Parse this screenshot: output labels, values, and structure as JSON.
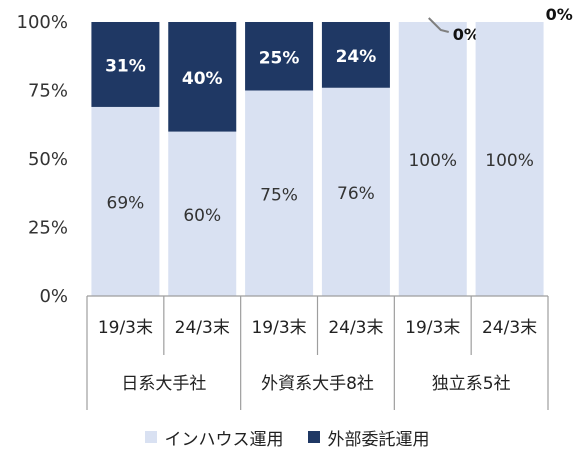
{
  "chart_data": {
    "type": "bar",
    "stacked": true,
    "categories": [
      "19/3末",
      "24/3末",
      "19/3末",
      "24/3末",
      "19/3末",
      "24/3末"
    ],
    "groups": [
      {
        "label": "日系大手社",
        "span": [
          0,
          1
        ]
      },
      {
        "label": "外資系大手8社",
        "span": [
          2,
          3
        ]
      },
      {
        "label": "独立系5社",
        "span": [
          4,
          5
        ]
      }
    ],
    "series": [
      {
        "name": "インハウス運用",
        "color": "#d9e1f2",
        "values": [
          69,
          60,
          75,
          76,
          100,
          100
        ],
        "labels": [
          "69%",
          "60%",
          "75%",
          "76%",
          "100%",
          "100%"
        ]
      },
      {
        "name": "外部委託運用",
        "color": "#1f3864",
        "values": [
          31,
          40,
          25,
          24,
          0,
          0
        ],
        "labels": [
          "31%",
          "40%",
          "25%",
          "24%",
          "0%",
          "0%"
        ]
      }
    ],
    "ylim": [
      0,
      100
    ],
    "yticks": [
      "0%",
      "25%",
      "50%",
      "75%",
      "100%"
    ],
    "ytick_values": [
      0,
      25,
      50,
      75,
      100
    ],
    "legend_position": "bottom",
    "grid": false
  }
}
